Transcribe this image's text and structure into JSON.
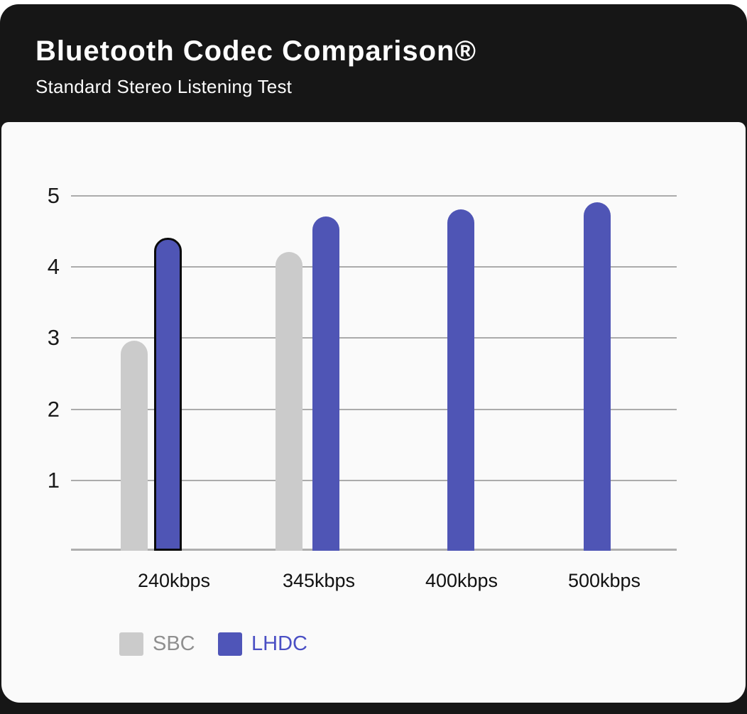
{
  "header": {
    "title": "Bluetooth Codec Comparison®",
    "subtitle": "Standard Stereo Listening Test"
  },
  "chart_data": {
    "type": "bar",
    "categories": [
      "240kbps",
      "345kbps",
      "400kbps",
      "500kbps"
    ],
    "series": [
      {
        "name": "SBC",
        "color": "#cbcbcb",
        "values": [
          2.95,
          4.2,
          null,
          null
        ]
      },
      {
        "name": "LHDC",
        "color": "#4f55b5",
        "values": [
          4.4,
          4.7,
          4.8,
          4.9
        ]
      }
    ],
    "highlighted_bar": {
      "series": "LHDC",
      "category": "240kbps",
      "outline_color": "#0a0a0a"
    },
    "ylim": [
      0,
      5
    ],
    "yticks": [
      5,
      4,
      3,
      2,
      1
    ],
    "grid": true,
    "legend_position": "bottom-left",
    "legend": [
      {
        "label": "SBC",
        "swatch_color": "#cbcbcb",
        "text_color": "#8f8f8f"
      },
      {
        "label": "LHDC",
        "swatch_color": "#4f55b8",
        "text_color": "#4a4fc4"
      }
    ]
  },
  "colors": {
    "card_bg": "#161616",
    "panel_bg": "#fafafa",
    "gridline": "#ababab",
    "axis_text": "#1a1a1a",
    "title_text": "#ffffff"
  }
}
